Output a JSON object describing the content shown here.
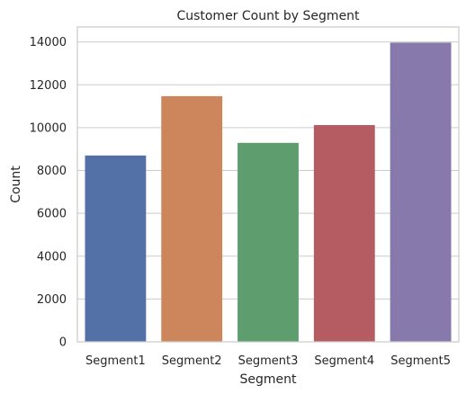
{
  "chart_data": {
    "type": "bar",
    "title": "Customer Count by Segment",
    "xlabel": "Segment",
    "ylabel": "Count",
    "categories": [
      "Segment1",
      "Segment2",
      "Segment3",
      "Segment4",
      "Segment5"
    ],
    "values": [
      8700,
      11470,
      9290,
      10120,
      13970
    ],
    "colors": [
      "#5471a7",
      "#cd855c",
      "#5e9e6e",
      "#b55b62",
      "#8779ac"
    ],
    "ylim": [
      0,
      14700
    ],
    "yticks": [
      0,
      2000,
      4000,
      6000,
      8000,
      10000,
      12000,
      14000
    ],
    "grid": "horizontal",
    "legend": "none"
  }
}
